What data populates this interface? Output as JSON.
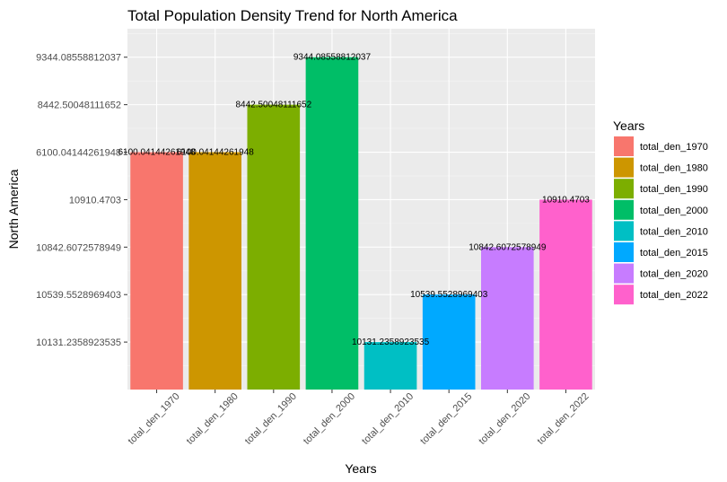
{
  "chart_data": {
    "type": "bar",
    "title": "Total Population Density Trend for North America",
    "xlabel": "Years",
    "ylabel": "North America",
    "categories": [
      "total_den_1970",
      "total_den_1980",
      "total_den_1990",
      "total_den_2000",
      "total_den_2010",
      "total_den_2015",
      "total_den_2020",
      "total_den_2022"
    ],
    "values": [
      6100.04144261948,
      6100.04144261948,
      8442.50048111652,
      9344.08558812037,
      10131.2358923535,
      10539.5528969403,
      10842.6072578949,
      10910.4703
    ],
    "value_labels": [
      "6100.04144261948",
      "6100.04144261948",
      "8442.50048111652",
      "9344.08558812037",
      "10131.2358923535",
      "10539.5528969403",
      "10842.6072578949",
      "10910.4703"
    ],
    "y_axis_order": [
      "10131.2358923535",
      "10539.5528969403",
      "10842.6072578949",
      "10910.4703",
      "6100.04144261948",
      "8442.50048111652",
      "9344.08558812037"
    ],
    "y_scale": "discrete",
    "colors": [
      "#F8766D",
      "#CD9600",
      "#7CAE00",
      "#00BE67",
      "#00BFC4",
      "#00A9FF",
      "#C77CFF",
      "#FF61CC"
    ],
    "panel_background": "#EBEBEB",
    "grid": true,
    "legend": {
      "title": "Years",
      "position": "right",
      "entries": [
        "total_den_1970",
        "total_den_1980",
        "total_den_1990",
        "total_den_2000",
        "total_den_2010",
        "total_den_2015",
        "total_den_2020",
        "total_den_2022"
      ]
    }
  }
}
